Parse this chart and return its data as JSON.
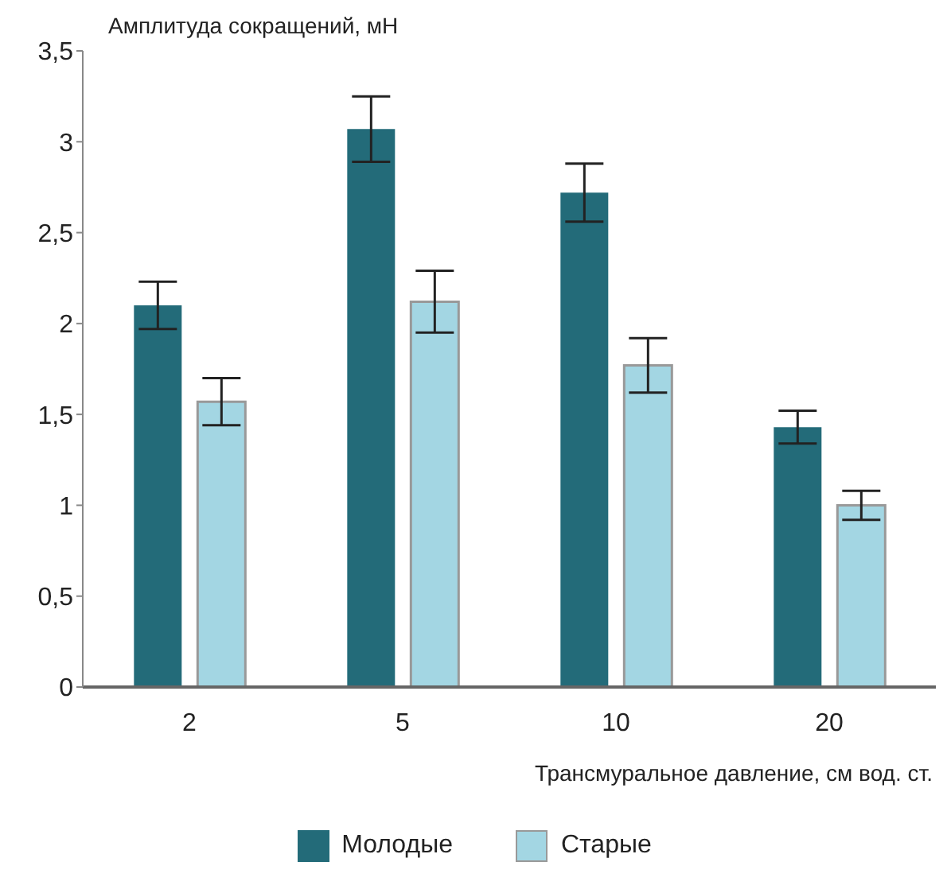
{
  "chart_data": {
    "type": "bar",
    "ylabel": "Амплитуда сокращений, мН",
    "xlabel": "Трансмуральное давление, см вод. ст.",
    "categories": [
      "2",
      "5",
      "10",
      "20"
    ],
    "series": [
      {
        "name": "Молодые",
        "color": "#236b79",
        "values": [
          2.1,
          3.07,
          2.72,
          1.43
        ],
        "errors": [
          0.13,
          0.18,
          0.16,
          0.09
        ]
      },
      {
        "name": "Старые",
        "color": "#a3d6e3",
        "values": [
          1.57,
          2.12,
          1.77,
          1.0
        ],
        "errors": [
          0.13,
          0.17,
          0.15,
          0.08
        ]
      }
    ],
    "ylim": [
      0,
      3.5
    ],
    "yticks": [
      {
        "value": 0,
        "label": "0"
      },
      {
        "value": 0.5,
        "label": "0,5"
      },
      {
        "value": 1,
        "label": "1"
      },
      {
        "value": 1.5,
        "label": "1,5"
      },
      {
        "value": 2,
        "label": "2"
      },
      {
        "value": 2.5,
        "label": "2,5"
      },
      {
        "value": 3,
        "label": "3"
      },
      {
        "value": 3.5,
        "label": "3,5"
      }
    ],
    "grid": false,
    "legend": "bottom"
  }
}
